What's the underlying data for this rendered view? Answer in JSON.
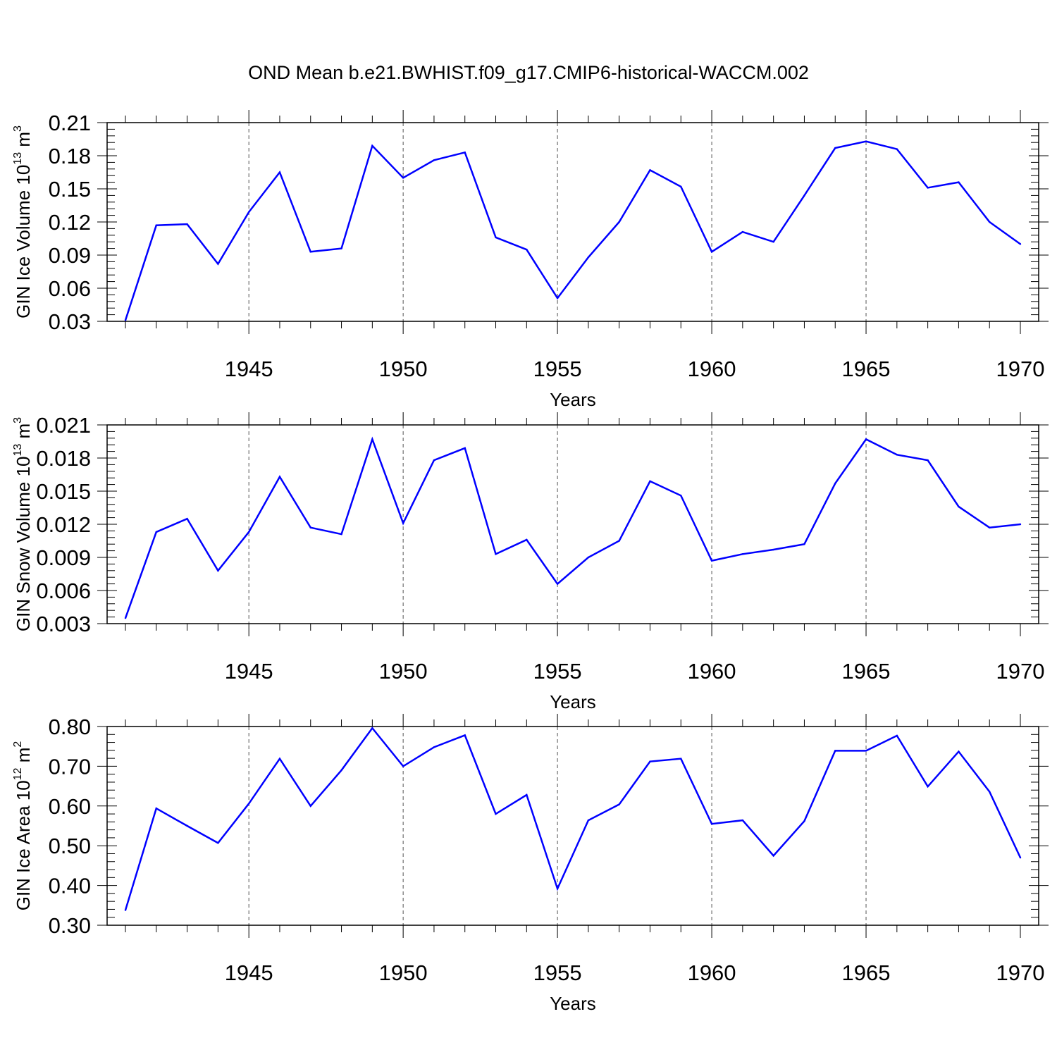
{
  "title": "OND Mean b.e21.BWHIST.f09_g17.CMIP6-historical-WACCM.002",
  "colors": {
    "series": "#0000ff",
    "axis": "#000000",
    "grid": "#555555"
  },
  "chart_data": [
    {
      "type": "line",
      "xlabel": "Years",
      "ylabel": {
        "main": "GIN Ice Volume 10",
        "exp": "13",
        "unit": " m",
        "unit_exp": "3"
      },
      "xlim": [
        1941,
        1970
      ],
      "ylim": [
        0.03,
        0.21
      ],
      "yticks": [
        "0.03",
        "0.06",
        "0.09",
        "0.12",
        "0.15",
        "0.18",
        "0.21"
      ],
      "xticks": [
        "1945",
        "1950",
        "1955",
        "1960",
        "1965",
        "1970"
      ],
      "x": [
        1941,
        1942,
        1943,
        1944,
        1945,
        1946,
        1947,
        1948,
        1949,
        1950,
        1951,
        1952,
        1953,
        1954,
        1955,
        1956,
        1957,
        1958,
        1959,
        1960,
        1961,
        1962,
        1963,
        1964,
        1965,
        1966,
        1967,
        1968,
        1969,
        1970
      ],
      "series": [
        {
          "name": "GIN Ice Volume",
          "values": [
            0.031,
            0.117,
            0.118,
            0.082,
            0.129,
            0.165,
            0.093,
            0.096,
            0.189,
            0.16,
            0.176,
            0.183,
            0.106,
            0.095,
            0.051,
            0.088,
            0.12,
            0.167,
            0.152,
            0.093,
            0.111,
            0.102,
            0.144,
            0.187,
            0.193,
            0.186,
            0.151,
            0.156,
            0.12,
            0.1
          ]
        }
      ]
    },
    {
      "type": "line",
      "xlabel": "Years",
      "ylabel": {
        "main": "GIN Snow Volume 10",
        "exp": "13",
        "unit": " m",
        "unit_exp": "3"
      },
      "xlim": [
        1941,
        1970
      ],
      "ylim": [
        0.003,
        0.021
      ],
      "yticks": [
        "0.003",
        "0.006",
        "0.009",
        "0.012",
        "0.015",
        "0.018",
        "0.021"
      ],
      "xticks": [
        "1945",
        "1950",
        "1955",
        "1960",
        "1965",
        "1970"
      ],
      "x": [
        1941,
        1942,
        1943,
        1944,
        1945,
        1946,
        1947,
        1948,
        1949,
        1950,
        1951,
        1952,
        1953,
        1954,
        1955,
        1956,
        1957,
        1958,
        1959,
        1960,
        1961,
        1962,
        1963,
        1964,
        1965,
        1966,
        1967,
        1968,
        1969,
        1970
      ],
      "series": [
        {
          "name": "GIN Snow Volume",
          "values": [
            0.0035,
            0.0113,
            0.0125,
            0.0078,
            0.0113,
            0.0163,
            0.0117,
            0.0111,
            0.0197,
            0.0121,
            0.0178,
            0.0189,
            0.0093,
            0.0106,
            0.0066,
            0.009,
            0.0105,
            0.0159,
            0.0146,
            0.0087,
            0.0093,
            0.0097,
            0.0102,
            0.0157,
            0.0197,
            0.0183,
            0.0178,
            0.0136,
            0.0117,
            0.012
          ]
        }
      ]
    },
    {
      "type": "line",
      "xlabel": "Years",
      "ylabel": {
        "main": "GIN Ice Area 10",
        "exp": "12",
        "unit": " m",
        "unit_exp": "2"
      },
      "xlim": [
        1941,
        1970
      ],
      "ylim": [
        0.3,
        0.8
      ],
      "yticks": [
        "0.30",
        "0.40",
        "0.50",
        "0.60",
        "0.70",
        "0.80"
      ],
      "xticks": [
        "1945",
        "1950",
        "1955",
        "1960",
        "1965",
        "1970"
      ],
      "x": [
        1941,
        1942,
        1943,
        1944,
        1945,
        1946,
        1947,
        1948,
        1949,
        1950,
        1951,
        1952,
        1953,
        1954,
        1955,
        1956,
        1957,
        1958,
        1959,
        1960,
        1961,
        1962,
        1963,
        1964,
        1965,
        1966,
        1967,
        1968,
        1969,
        1970
      ],
      "series": [
        {
          "name": "GIN Ice Area",
          "values": [
            0.338,
            0.594,
            0.55,
            0.507,
            0.606,
            0.719,
            0.6,
            0.69,
            0.796,
            0.7,
            0.748,
            0.778,
            0.58,
            0.628,
            0.392,
            0.564,
            0.604,
            0.712,
            0.719,
            0.555,
            0.564,
            0.475,
            0.562,
            0.739,
            0.739,
            0.777,
            0.649,
            0.737,
            0.636,
            0.47
          ]
        }
      ]
    }
  ]
}
